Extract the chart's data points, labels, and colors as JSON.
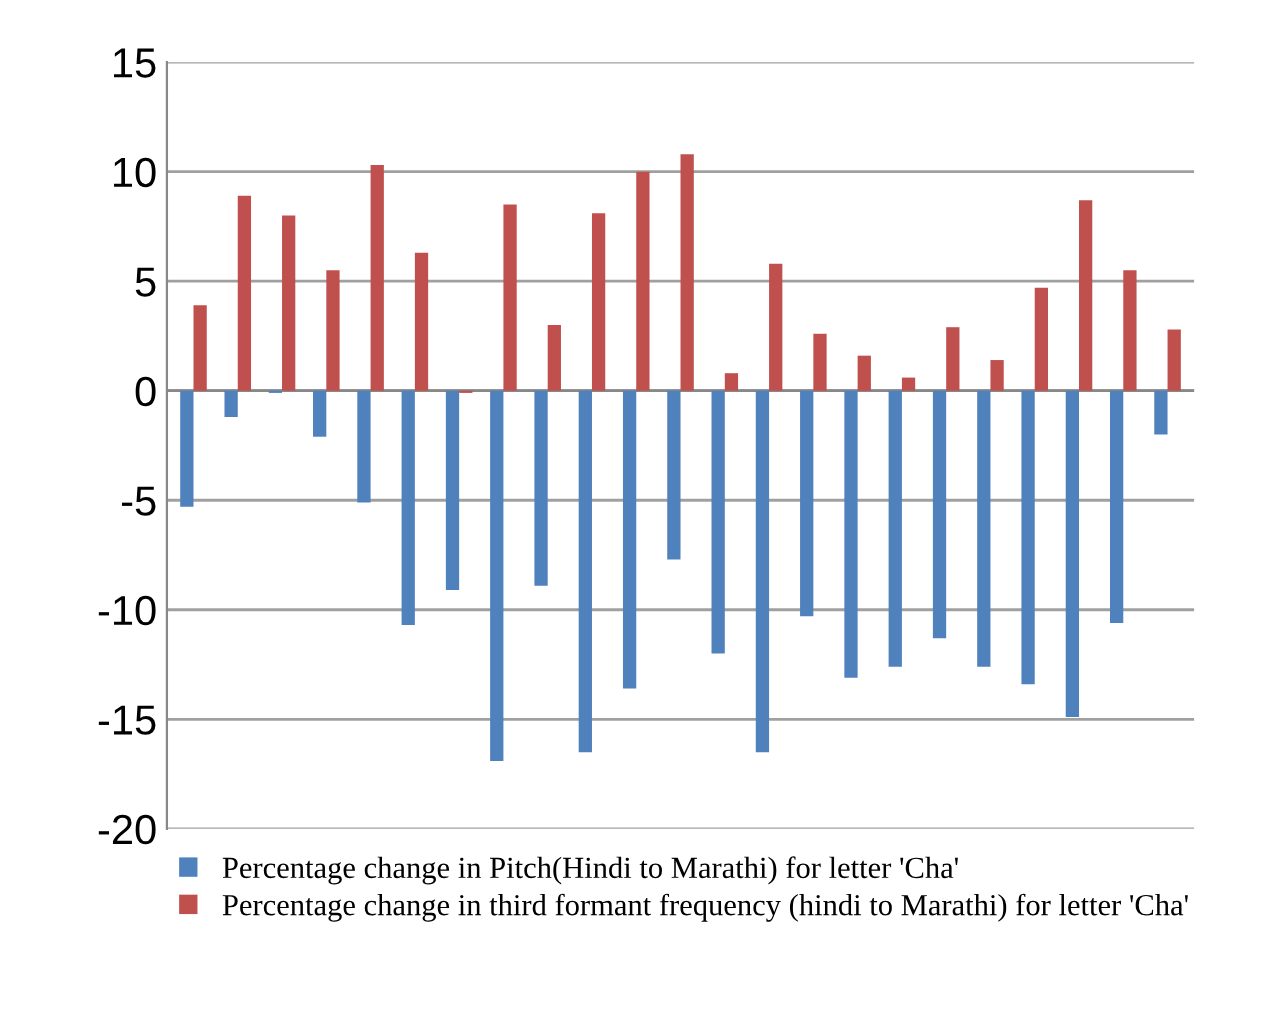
{
  "chart_data": {
    "type": "bar",
    "categories": [
      null,
      null,
      null,
      null,
      null,
      null,
      null,
      null,
      null,
      null,
      null,
      null,
      null,
      null,
      null,
      null,
      null,
      null,
      null,
      null,
      null,
      null,
      null
    ],
    "series": [
      {
        "name": "Percentage change in Pitch(Hindi to Marathi) for letter 'Cha'",
        "color": "#4f81bd",
        "values": [
          -5.3,
          -1.2,
          -0.1,
          -2.1,
          -5.1,
          -10.7,
          -9.1,
          -16.9,
          -8.9,
          -16.5,
          -13.6,
          -7.7,
          -12.0,
          -16.5,
          -10.3,
          -13.1,
          -12.6,
          -11.3,
          -12.6,
          -13.4,
          -14.9,
          -10.6,
          -2.0
        ]
      },
      {
        "name": "Percentage change in third formant frequency (hindi to Marathi) for letter 'Cha'",
        "color": "#c0504d",
        "values": [
          3.9,
          8.9,
          8.0,
          5.5,
          10.3,
          6.3,
          -0.1,
          8.5,
          3.0,
          8.1,
          10.0,
          10.8,
          0.8,
          5.8,
          2.6,
          1.6,
          0.6,
          2.9,
          1.4,
          4.7,
          8.7,
          5.5,
          2.8
        ]
      }
    ],
    "ylim": [
      -20,
      15
    ],
    "yticks": [
      -20,
      -15,
      -10,
      -5,
      0,
      5,
      10,
      15
    ],
    "grid": "y",
    "legend": "bottom"
  }
}
